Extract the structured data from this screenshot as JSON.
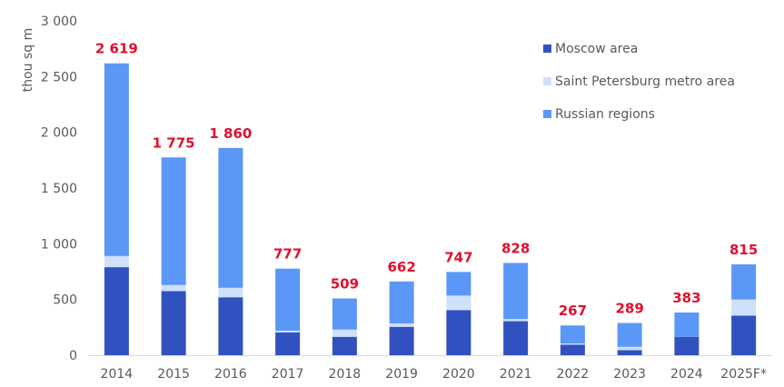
{
  "chart_data": {
    "type": "bar",
    "stacked": true,
    "ylabel": "thou sq m",
    "ylim": [
      0,
      3000
    ],
    "yticks": [
      "0",
      "500",
      "1 000",
      "1 500",
      "2 000",
      "2 500",
      "3 000"
    ],
    "ytick_values": [
      0,
      500,
      1000,
      1500,
      2000,
      2500,
      3000
    ],
    "categories": [
      "2014",
      "2015",
      "2016",
      "2017",
      "2018",
      "2019",
      "2020",
      "2021",
      "2022",
      "2023",
      "2024",
      "2025F*"
    ],
    "series": [
      {
        "name": "Moscow area",
        "color": "#3251c0",
        "values": [
          790,
          575,
          520,
          205,
          165,
          255,
          405,
          305,
          95,
          45,
          165,
          355
        ]
      },
      {
        "name": "Saint Petersburg metro area",
        "color": "#cfe0fb",
        "values": [
          100,
          55,
          85,
          15,
          65,
          30,
          130,
          20,
          10,
          30,
          0,
          145
        ]
      },
      {
        "name": "Russian regions",
        "color": "#5b97f7",
        "values": [
          1729,
          1145,
          1255,
          557,
          279,
          377,
          212,
          503,
          162,
          214,
          218,
          315
        ]
      }
    ],
    "totals": [
      "2 619",
      "1 775",
      "1 860",
      "777",
      "509",
      "662",
      "747",
      "828",
      "267",
      "289",
      "383",
      "815"
    ],
    "total_color": "#e0102f",
    "legend_position": "top-right",
    "grid": false
  }
}
